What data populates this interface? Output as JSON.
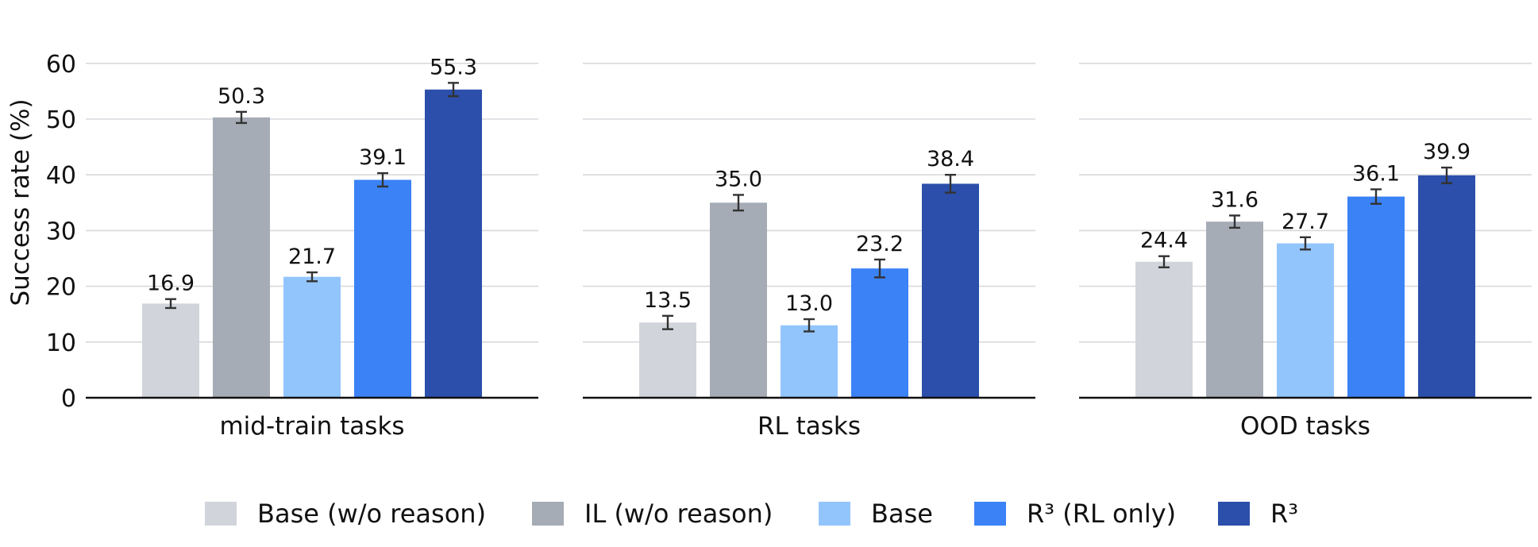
{
  "chart_data": {
    "type": "bar",
    "ylabel": "Success rate (%)",
    "ylim": [
      0,
      65
    ],
    "yticks": [
      "0",
      "10",
      "20",
      "30",
      "40",
      "50",
      "60"
    ],
    "grid": true,
    "legend_placement": "bottom",
    "panels": [
      {
        "label": "mid-train tasks",
        "values": [
          16.9,
          50.3,
          21.7,
          39.1,
          55.3
        ],
        "value_labels": [
          "16.9",
          "50.3",
          "21.7",
          "39.1",
          "55.3"
        ],
        "errors": [
          0.8,
          1.0,
          0.8,
          1.2,
          1.2
        ]
      },
      {
        "label": "RL tasks",
        "values": [
          13.5,
          35.0,
          13.0,
          23.2,
          38.4
        ],
        "value_labels": [
          "13.5",
          "35.0",
          "13.0",
          "23.2",
          "38.4"
        ],
        "errors": [
          1.2,
          1.4,
          1.1,
          1.6,
          1.6
        ]
      },
      {
        "label": "OOD tasks",
        "values": [
          24.4,
          31.6,
          27.7,
          36.1,
          39.9
        ],
        "value_labels": [
          "24.4",
          "31.6",
          "27.7",
          "36.1",
          "39.9"
        ],
        "errors": [
          1.0,
          1.1,
          1.1,
          1.3,
          1.4
        ]
      }
    ],
    "series": [
      {
        "name": "Base (w/o reason)",
        "color": "#d1d5db"
      },
      {
        "name": "IL (w/o reason)",
        "color": "#a6acb5"
      },
      {
        "name": "Base",
        "color": "#93c5fd"
      },
      {
        "name": "R³ (RL only)",
        "color": "#3b82f6"
      },
      {
        "name": "R³",
        "color": "#2b4faa"
      }
    ]
  }
}
